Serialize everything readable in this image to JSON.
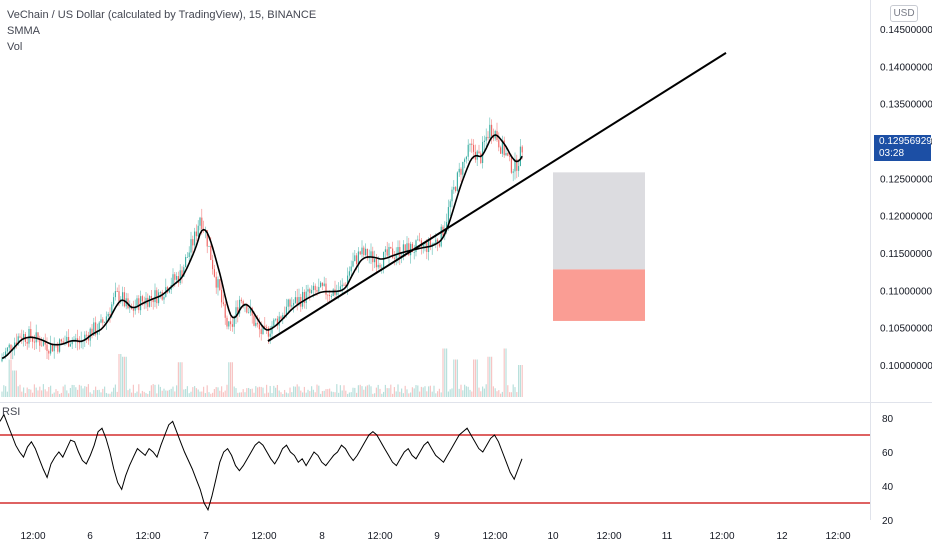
{
  "header": {
    "symbol_line": "VeChain / US Dollar (calculated by TradingView), 15, BINANCE",
    "indicator_1": "SMMA",
    "indicator_2": "Vol"
  },
  "currency_button": "USD",
  "last_price": {
    "value": "0.12956929",
    "countdown": "03:28"
  },
  "rsi_panel": {
    "label": "RSI",
    "upper_band": 70,
    "lower_band": 30
  },
  "colors": {
    "up": "#26a69a",
    "down": "#ef5350",
    "smma": "#000000",
    "trendline": "#000000",
    "rsi_bands": "#d32f2f",
    "box_upper": "#dcdce0",
    "box_lower": "#fa9d94",
    "price_tag": "#1c4fa5"
  },
  "chart_data": [
    {
      "type": "candlestick",
      "y_axis_ticks": [
        "0.14500000",
        "0.14000000",
        "0.13500000",
        "0.13000000",
        "0.12500000",
        "0.12000000",
        "0.11500000",
        "0.11000000",
        "0.10500000",
        "0.10000000"
      ],
      "x_axis_ticks": [
        "12:00",
        "6",
        "12:00",
        "7",
        "12:00",
        "8",
        "12:00",
        "9",
        "12:00",
        "10",
        "12:00",
        "11",
        "12:00",
        "12",
        "12:00"
      ],
      "ylim": [
        0.0977,
        0.1466
      ],
      "trendline": {
        "start_value": 0.1032,
        "end_value": 0.1418
      },
      "position_box": {
        "top": 0.1258,
        "entry": 0.1128,
        "bottom": 0.1059
      },
      "close_path": [
        [
          0,
          0.1005
        ],
        [
          10,
          0.1025
        ],
        [
          20,
          0.104
        ],
        [
          30,
          0.1038
        ],
        [
          40,
          0.1032
        ],
        [
          50,
          0.1025
        ],
        [
          60,
          0.1028
        ],
        [
          70,
          0.1035
        ],
        [
          80,
          0.103
        ],
        [
          90,
          0.1045
        ],
        [
          100,
          0.105
        ],
        [
          110,
          0.1075
        ],
        [
          115,
          0.109
        ],
        [
          120,
          0.1095
        ],
        [
          125,
          0.1082
        ],
        [
          130,
          0.107
        ],
        [
          135,
          0.1078
        ],
        [
          140,
          0.1085
        ],
        [
          150,
          0.109
        ],
        [
          160,
          0.1095
        ],
        [
          170,
          0.111
        ],
        [
          180,
          0.112
        ],
        [
          190,
          0.1155
        ],
        [
          195,
          0.1172
        ],
        [
          200,
          0.12
        ],
        [
          205,
          0.118
        ],
        [
          210,
          0.115
        ],
        [
          215,
          0.112
        ],
        [
          220,
          0.1095
        ],
        [
          225,
          0.106
        ],
        [
          230,
          0.1045
        ],
        [
          235,
          0.1065
        ],
        [
          240,
          0.109
        ],
        [
          245,
          0.1085
        ],
        [
          250,
          0.107
        ],
        [
          255,
          0.1055
        ],
        [
          260,
          0.1045
        ],
        [
          265,
          0.104
        ],
        [
          270,
          0.105
        ],
        [
          280,
          0.1065
        ],
        [
          290,
          0.108
        ],
        [
          300,
          0.1088
        ],
        [
          310,
          0.1095
        ],
        [
          320,
          0.11
        ],
        [
          330,
          0.1098
        ],
        [
          340,
          0.11
        ],
        [
          345,
          0.1108
        ],
        [
          350,
          0.113
        ],
        [
          360,
          0.115
        ],
        [
          370,
          0.1145
        ],
        [
          380,
          0.114
        ],
        [
          390,
          0.1148
        ],
        [
          400,
          0.1152
        ],
        [
          410,
          0.1155
        ],
        [
          420,
          0.1158
        ],
        [
          430,
          0.116
        ],
        [
          440,
          0.117
        ],
        [
          445,
          0.119
        ],
        [
          450,
          0.1215
        ],
        [
          455,
          0.124
        ],
        [
          460,
          0.126
        ],
        [
          465,
          0.1275
        ],
        [
          470,
          0.129
        ],
        [
          475,
          0.1285
        ],
        [
          480,
          0.1275
        ],
        [
          485,
          0.13
        ],
        [
          490,
          0.1318
        ],
        [
          495,
          0.1312
        ],
        [
          500,
          0.1295
        ],
        [
          505,
          0.1285
        ],
        [
          510,
          0.1268
        ],
        [
          515,
          0.1265
        ],
        [
          520,
          0.128
        ],
        [
          523,
          0.1296
        ]
      ],
      "volume_spikes": [
        [
          10,
          0.5
        ],
        [
          15,
          0.3
        ],
        [
          120,
          0.6
        ],
        [
          125,
          0.55
        ],
        [
          180,
          0.45
        ],
        [
          230,
          0.45
        ],
        [
          445,
          0.7
        ],
        [
          455,
          0.5
        ],
        [
          475,
          0.5
        ],
        [
          490,
          0.55
        ],
        [
          505,
          0.7
        ],
        [
          520,
          0.4
        ]
      ]
    },
    {
      "type": "line",
      "name": "RSI",
      "ylim": [
        20,
        90
      ],
      "y_axis_ticks": [
        80,
        60,
        40,
        20
      ],
      "values": [
        78,
        82,
        76,
        70,
        64,
        60,
        57,
        63,
        66,
        62,
        56,
        50,
        45,
        53,
        57,
        60,
        57,
        62,
        67,
        66,
        60,
        55,
        53,
        58,
        64,
        72,
        74,
        68,
        60,
        50,
        42,
        38,
        46,
        52,
        57,
        62,
        60,
        58,
        62,
        60,
        57,
        64,
        70,
        76,
        78,
        72,
        66,
        60,
        55,
        50,
        44,
        38,
        30,
        26,
        34,
        44,
        54,
        60,
        62,
        58,
        52,
        49,
        52,
        56,
        60,
        64,
        66,
        64,
        60,
        56,
        53,
        57,
        62,
        64,
        60,
        58,
        54,
        56,
        52,
        56,
        60,
        58,
        54,
        52,
        55,
        58,
        60,
        64,
        62,
        58,
        55,
        58,
        62,
        66,
        70,
        72,
        70,
        66,
        62,
        58,
        54,
        52,
        56,
        60,
        62,
        58,
        56,
        60,
        64,
        66,
        62,
        58,
        56,
        54,
        58,
        62,
        66,
        70,
        72,
        74,
        70,
        66,
        62,
        60,
        64,
        68,
        70,
        66,
        60,
        54,
        48,
        44,
        50,
        56
      ],
      "band_upper": 70,
      "band_lower": 30
    }
  ]
}
